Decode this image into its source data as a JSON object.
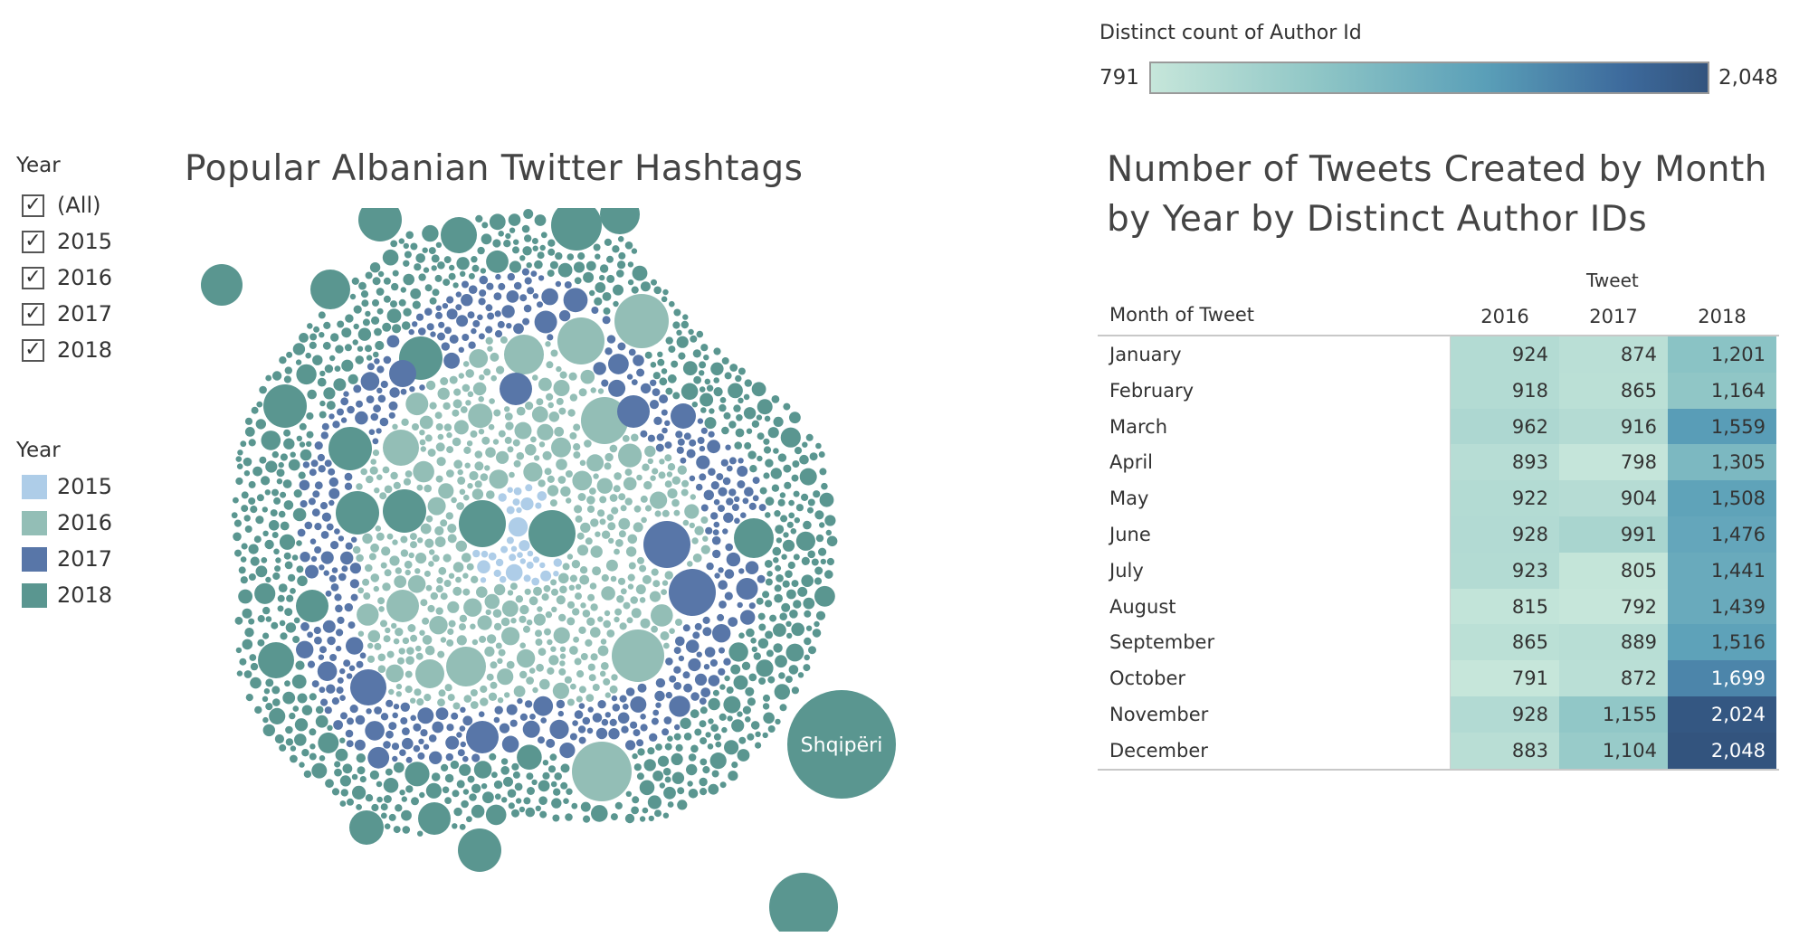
{
  "filter": {
    "title": "Year",
    "options": [
      {
        "label": "(All)",
        "checked": true
      },
      {
        "label": "2015",
        "checked": true
      },
      {
        "label": "2016",
        "checked": true
      },
      {
        "label": "2017",
        "checked": true
      },
      {
        "label": "2018",
        "checked": true
      }
    ]
  },
  "year_legend": {
    "title": "Year",
    "items": [
      {
        "label": "2015",
        "color": "#aecde8"
      },
      {
        "label": "2016",
        "color": "#93beb6"
      },
      {
        "label": "2017",
        "color": "#5876a8"
      },
      {
        "label": "2018",
        "color": "#5a9690"
      }
    ]
  },
  "color_legend": {
    "title": "Distinct count of Author Id",
    "min": "791",
    "max": "2,048"
  },
  "chart_data": [
    {
      "type": "bubble",
      "title": "Popular Albanian Twitter Hashtags",
      "color_by": "Year",
      "labeled_bubble": {
        "label": "Shqipëri",
        "year": "2018"
      },
      "groups": [
        "2015",
        "2016",
        "2017",
        "2018"
      ]
    },
    {
      "type": "table",
      "title": "Number of Tweets Created by Month by Year by Distinct Author IDs",
      "column_group_header": "Tweet",
      "row_header": "Month of Tweet",
      "columns": [
        "2016",
        "2017",
        "2018"
      ],
      "rows": [
        {
          "month": "January",
          "values": [
            "924",
            "874",
            "1,201"
          ]
        },
        {
          "month": "February",
          "values": [
            "918",
            "865",
            "1,164"
          ]
        },
        {
          "month": "March",
          "values": [
            "962",
            "916",
            "1,559"
          ]
        },
        {
          "month": "April",
          "values": [
            "893",
            "798",
            "1,305"
          ]
        },
        {
          "month": "May",
          "values": [
            "922",
            "904",
            "1,508"
          ]
        },
        {
          "month": "June",
          "values": [
            "928",
            "991",
            "1,476"
          ]
        },
        {
          "month": "July",
          "values": [
            "923",
            "805",
            "1,441"
          ]
        },
        {
          "month": "August",
          "values": [
            "815",
            "792",
            "1,439"
          ]
        },
        {
          "month": "September",
          "values": [
            "865",
            "889",
            "1,516"
          ]
        },
        {
          "month": "October",
          "values": [
            "791",
            "872",
            "1,699"
          ]
        },
        {
          "month": "November",
          "values": [
            "928",
            "1,155",
            "2,024"
          ]
        },
        {
          "month": "December",
          "values": [
            "883",
            "1,104",
            "2,048"
          ]
        }
      ],
      "color_range": [
        791,
        2048
      ]
    }
  ]
}
